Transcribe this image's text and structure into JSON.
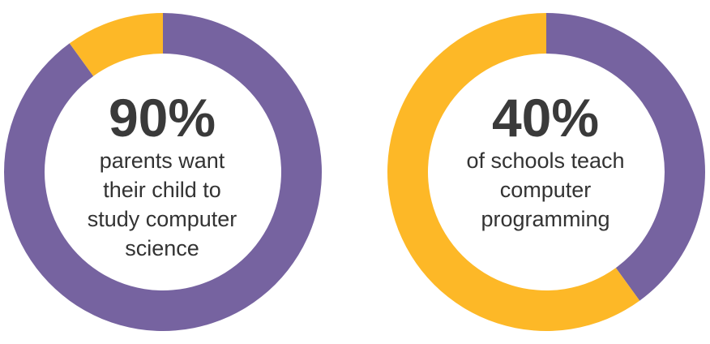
{
  "colors": {
    "purple": "#7663A0",
    "yellow": "#FDB827",
    "text": "#333333"
  },
  "chart_data": [
    {
      "type": "pie",
      "style": "donut",
      "value_percent": 90,
      "slices": [
        {
          "value": 90,
          "color": "#7663A0"
        },
        {
          "value": 10,
          "color": "#FDB827"
        }
      ],
      "headline": "90%",
      "caption_lines": [
        "parents want",
        "their child to",
        "study computer",
        "science"
      ]
    },
    {
      "type": "pie",
      "style": "donut",
      "value_percent": 40,
      "slices": [
        {
          "value": 40,
          "color": "#7663A0"
        },
        {
          "value": 60,
          "color": "#FDB827"
        }
      ],
      "headline": "40%",
      "caption_lines": [
        "of schools teach",
        "computer",
        "programming"
      ]
    }
  ]
}
